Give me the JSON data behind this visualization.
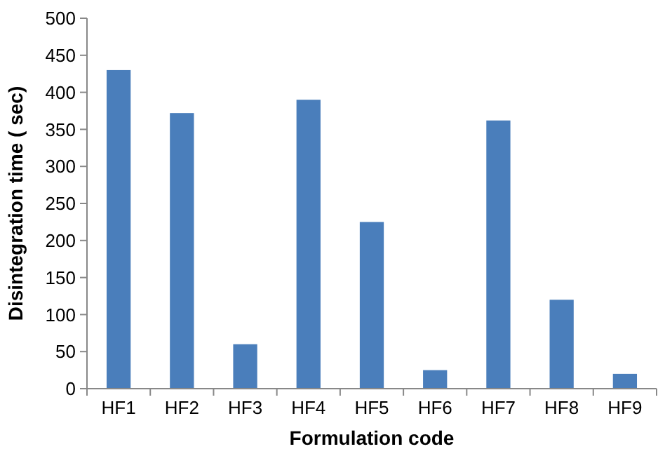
{
  "chart_data": {
    "type": "bar",
    "xlabel": "Formulation code",
    "ylabel": "Disintegration time ( sec)",
    "categories": [
      "HF1",
      "HF2",
      "HF3",
      "HF4",
      "HF5",
      "HF6",
      "HF7",
      "HF8",
      "HF9"
    ],
    "values": [
      430,
      372,
      60,
      390,
      225,
      25,
      362,
      120,
      20
    ],
    "color": "#4a7ebb",
    "ylim": [
      0,
      500
    ],
    "yticks": [
      0,
      50,
      100,
      150,
      200,
      250,
      300,
      350,
      400,
      450,
      500
    ]
  }
}
